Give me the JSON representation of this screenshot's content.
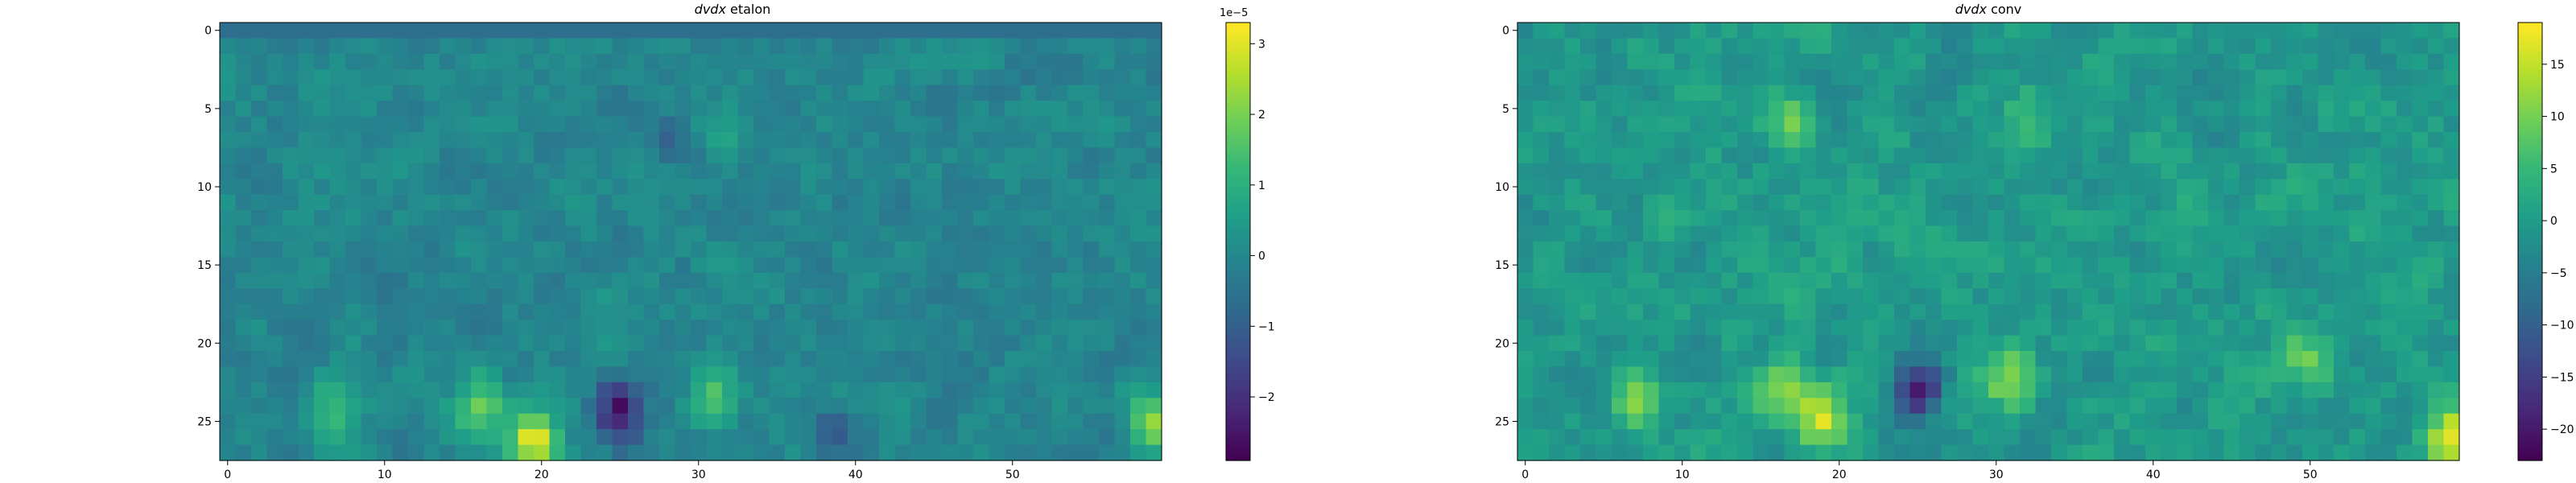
{
  "chart_data": [
    {
      "type": "heatmap",
      "title_italic": "dvdx",
      "title_rest": " etalon",
      "cols": 60,
      "rows": 28,
      "x_ticks": [
        0,
        10,
        20,
        30,
        40,
        50
      ],
      "y_ticks": [
        0,
        5,
        10,
        15,
        20,
        25
      ],
      "colorbar": {
        "ticks": [
          -2,
          -1,
          0,
          1,
          2,
          3
        ],
        "tick_labels": [
          "−2",
          "−1",
          "0",
          "1",
          "2",
          "3"
        ],
        "offset_label": "1e−5",
        "range": [
          -2.9,
          3.3
        ]
      },
      "colormap": "viridis",
      "base_value": -0.05,
      "noise_amplitude": 0.5,
      "hotspots": [
        {
          "col": 7,
          "row": 24.5,
          "value": 1.6
        },
        {
          "col": 16,
          "row": 24,
          "value": 1.9
        },
        {
          "col": 19.5,
          "row": 26,
          "value": 3.1
        },
        {
          "col": 25,
          "row": 24.5,
          "value": -2.6
        },
        {
          "col": 31,
          "row": 23.5,
          "value": 1.5
        },
        {
          "col": 38.5,
          "row": 26,
          "value": -1.1
        },
        {
          "col": 59,
          "row": 25,
          "value": 2.0
        },
        {
          "col": 28,
          "row": 7,
          "value": -0.7
        },
        {
          "col": 32,
          "row": 6,
          "value": 0.8
        }
      ]
    },
    {
      "type": "heatmap",
      "title_italic": "dvdx",
      "title_rest": " conv",
      "cols": 60,
      "rows": 28,
      "x_ticks": [
        0,
        10,
        20,
        30,
        40,
        50
      ],
      "y_ticks": [
        0,
        5,
        10,
        15,
        20,
        25
      ],
      "colorbar": {
        "ticks": [
          -20,
          -15,
          -10,
          -5,
          0,
          5,
          10,
          15
        ],
        "tick_labels": [
          "−20",
          "−15",
          "−10",
          "−5",
          "0",
          "5",
          "10",
          "15"
        ],
        "offset_label": "",
        "range": [
          -23,
          19
        ]
      },
      "colormap": "viridis",
      "base_value": -0.5,
      "noise_amplitude": 4.0,
      "hotspots": [
        {
          "col": 7,
          "row": 23.5,
          "value": 12
        },
        {
          "col": 16.5,
          "row": 23,
          "value": 14
        },
        {
          "col": 19,
          "row": 25,
          "value": 17
        },
        {
          "col": 25,
          "row": 23,
          "value": -21
        },
        {
          "col": 31,
          "row": 22.5,
          "value": 13
        },
        {
          "col": 59,
          "row": 26,
          "value": 18
        },
        {
          "col": 17,
          "row": 6,
          "value": 11
        },
        {
          "col": 32,
          "row": 6,
          "value": 7
        },
        {
          "col": 50,
          "row": 21,
          "value": 9
        }
      ]
    }
  ]
}
